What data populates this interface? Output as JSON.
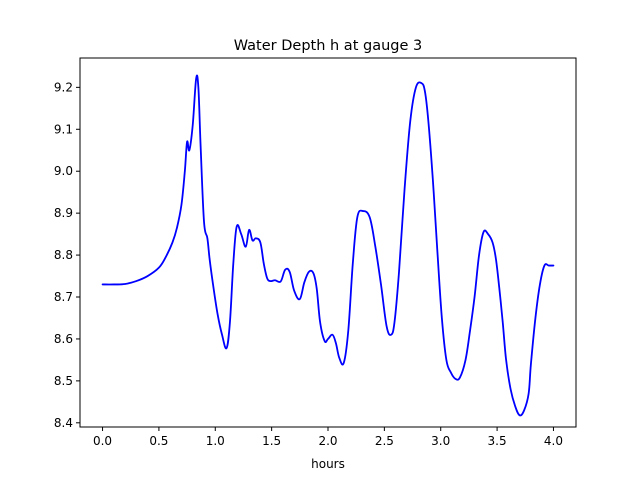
{
  "chart_data": {
    "type": "line",
    "title": "Water Depth h at gauge 3",
    "xlabel": "hours",
    "ylabel": "",
    "xlim": [
      -0.2,
      4.2
    ],
    "ylim": [
      8.39,
      9.27
    ],
    "xticks": [
      0.0,
      0.5,
      1.0,
      1.5,
      2.0,
      2.5,
      3.0,
      3.5,
      4.0
    ],
    "xtick_labels": [
      "0.0",
      "0.5",
      "1.0",
      "1.5",
      "2.0",
      "2.5",
      "3.0",
      "3.5",
      "4.0"
    ],
    "yticks": [
      8.4,
      8.5,
      8.6,
      8.7,
      8.8,
      8.9,
      9.0,
      9.1,
      9.2
    ],
    "ytick_labels": [
      "8.4",
      "8.5",
      "8.6",
      "8.7",
      "8.8",
      "8.9",
      "9.0",
      "9.1",
      "9.2"
    ],
    "grid": false,
    "legend": "none",
    "series": [
      {
        "color": "#0000ff",
        "x": [
          0.0,
          0.1,
          0.2,
          0.3,
          0.4,
          0.5,
          0.56,
          0.62,
          0.66,
          0.7,
          0.73,
          0.75,
          0.77,
          0.8,
          0.83,
          0.85,
          0.87,
          0.9,
          0.93,
          0.95,
          0.98,
          1.02,
          1.06,
          1.1,
          1.13,
          1.16,
          1.19,
          1.23,
          1.27,
          1.3,
          1.33,
          1.36,
          1.4,
          1.43,
          1.46,
          1.49,
          1.53,
          1.58,
          1.62,
          1.66,
          1.7,
          1.75,
          1.79,
          1.83,
          1.87,
          1.9,
          1.93,
          1.97,
          2.0,
          2.04,
          2.07,
          2.1,
          2.14,
          2.18,
          2.22,
          2.26,
          2.31,
          2.37,
          2.42,
          2.47,
          2.52,
          2.56,
          2.59,
          2.63,
          2.68,
          2.73,
          2.78,
          2.83,
          2.86,
          2.89,
          2.93,
          2.97,
          3.01,
          3.05,
          3.09,
          3.13,
          3.17,
          3.22,
          3.26,
          3.3,
          3.34,
          3.38,
          3.42,
          3.46,
          3.49,
          3.52,
          3.55,
          3.58,
          3.62,
          3.66,
          3.7,
          3.74,
          3.78,
          3.8,
          3.84,
          3.88,
          3.92,
          3.96,
          4.0
        ],
        "y": [
          8.73,
          8.73,
          8.731,
          8.738,
          8.75,
          8.77,
          8.795,
          8.83,
          8.865,
          8.92,
          9.0,
          9.07,
          9.05,
          9.11,
          9.22,
          9.2,
          9.06,
          8.88,
          8.84,
          8.79,
          8.73,
          8.66,
          8.61,
          8.578,
          8.64,
          8.78,
          8.868,
          8.85,
          8.82,
          8.86,
          8.835,
          8.84,
          8.83,
          8.78,
          8.745,
          8.738,
          8.74,
          8.737,
          8.765,
          8.76,
          8.715,
          8.695,
          8.735,
          8.76,
          8.757,
          8.72,
          8.64,
          8.595,
          8.6,
          8.61,
          8.59,
          8.555,
          8.543,
          8.62,
          8.78,
          8.89,
          8.905,
          8.89,
          8.82,
          8.73,
          8.63,
          8.61,
          8.64,
          8.76,
          8.96,
          9.12,
          9.2,
          9.21,
          9.19,
          9.12,
          8.98,
          8.81,
          8.65,
          8.55,
          8.52,
          8.505,
          8.508,
          8.55,
          8.62,
          8.7,
          8.8,
          8.855,
          8.85,
          8.83,
          8.79,
          8.72,
          8.64,
          8.55,
          8.48,
          8.44,
          8.418,
          8.43,
          8.47,
          8.54,
          8.65,
          8.73,
          8.775,
          8.775,
          8.775
        ]
      }
    ]
  }
}
